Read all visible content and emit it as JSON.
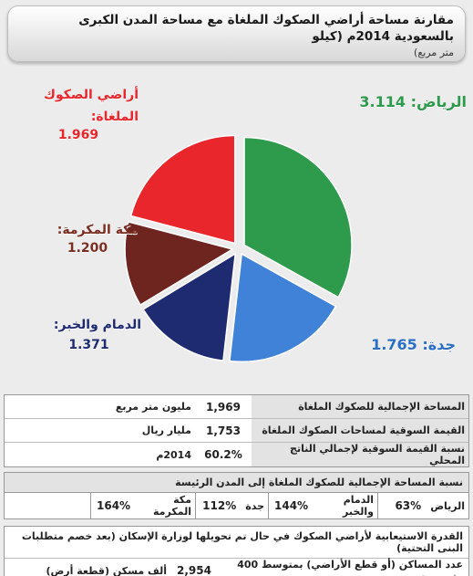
{
  "title": {
    "main": "مقارنة مساحة أراضي الصكوك الملغاة مع مساحة المدن الكبرى بالسعودية 2014م (كيلو",
    "unit": "متر مربع)"
  },
  "chart_data": {
    "type": "pie",
    "title": "مقارنة مساحة أراضي الصكوك الملغاة مع مساحة المدن الكبرى بالسعودية 2014م (كيلو متر مربع)",
    "slices": [
      {
        "label": "الرياض:",
        "value": 3.114,
        "value_text": "3.114",
        "color": "#2e9a4c"
      },
      {
        "label": "جدة:",
        "value": 1.765,
        "value_text": "1.765",
        "color": "#3f82d8"
      },
      {
        "label": "الدمام والخبر:",
        "value": 1.371,
        "value_text": "1.371",
        "color": "#1e2b70"
      },
      {
        "label": "مكة المكرمة:",
        "value": 1.2,
        "value_text": "1.200",
        "color": "#6e241f"
      },
      {
        "label": "أراضي الصكوك الملغاة:",
        "value": 1.969,
        "value_text": "1.969",
        "color": "#e8262b"
      }
    ],
    "label_colors": {
      "riyadh": "#2e9a4c",
      "jeddah": "#2a6fc4",
      "dammam": "#1e2b70",
      "makkah": "#7a2e22",
      "cancelled": "#e8262b"
    }
  },
  "table1": {
    "rows": [
      {
        "label": "المساحة الإجمالية للصكوك الملغاة",
        "value": "1,969",
        "unit": "مليون متر مربع",
        "note": ""
      },
      {
        "label": "القيمة السوقية لمساحات الصكوك الملغاة",
        "value": "1,753",
        "unit": "مليار ريال",
        "note": ""
      },
      {
        "label": "نسبة القيمة السوقية لإجمالي الناتج المحلي",
        "value": "60.2%",
        "unit": "2014م",
        "note": ""
      }
    ]
  },
  "table2": {
    "header": "نسبة المساحة الإجمالية للصكوك الملغاة إلى المدن الرئيسة",
    "cities": [
      {
        "name": "الرياض",
        "value": "63%"
      },
      {
        "name": "الدمام والخبر",
        "value": "144%"
      },
      {
        "name": "جدة",
        "value": "112%"
      },
      {
        "name": "مكة المكرمة",
        "value": "164%"
      }
    ]
  },
  "table3": {
    "header": "القدرة الاستيعابية لأراضي الصكوك في حال تم تحويلها لوزارة الإسكان (بعد خصم متطلبات البنى التحتية)",
    "label": "عدد المساكن (أو قطع الأراضي) بمتوسط 400 متر مربع",
    "value": "2,954",
    "unit": "ألف مسكن (قطعة أرض)"
  }
}
